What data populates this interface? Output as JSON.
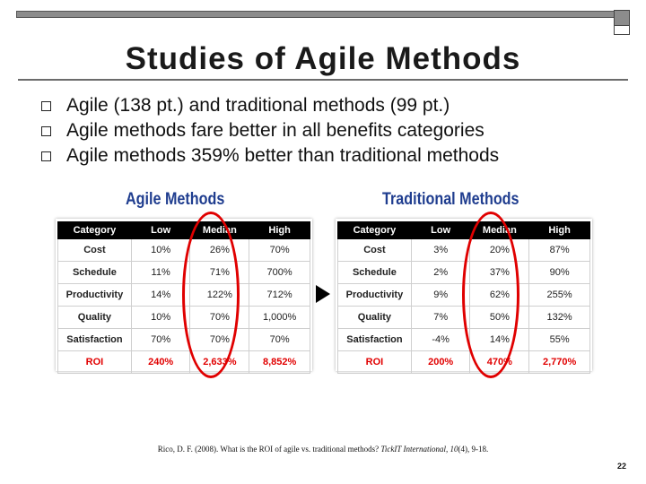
{
  "slide": {
    "title": "Studies of Agile Methods",
    "bullets": [
      "Agile (138 pt.) and traditional methods (99 pt.)",
      "Agile methods fare better in all benefits categories",
      "Agile methods 359% better than traditional methods"
    ],
    "page_number": "22"
  },
  "agile": {
    "heading": "Agile Methods",
    "columns": [
      "Category",
      "Low",
      "Median",
      "High"
    ],
    "rows": [
      [
        "Cost",
        "10%",
        "26%",
        "70%"
      ],
      [
        "Schedule",
        "11%",
        "71%",
        "700%"
      ],
      [
        "Productivity",
        "14%",
        "122%",
        "712%"
      ],
      [
        "Quality",
        "10%",
        "70%",
        "1,000%"
      ],
      [
        "Satisfaction",
        "70%",
        "70%",
        "70%"
      ],
      [
        "ROI",
        "240%",
        "2,633%",
        "8,852%"
      ]
    ]
  },
  "traditional": {
    "heading": "Traditional Methods",
    "columns": [
      "Category",
      "Low",
      "Median",
      "High"
    ],
    "rows": [
      [
        "Cost",
        "3%",
        "20%",
        "87%"
      ],
      [
        "Schedule",
        "2%",
        "37%",
        "90%"
      ],
      [
        "Productivity",
        "9%",
        "62%",
        "255%"
      ],
      [
        "Quality",
        "7%",
        "50%",
        "132%"
      ],
      [
        "Satisfaction",
        "-4%",
        "14%",
        "55%"
      ],
      [
        "ROI",
        "200%",
        "470%",
        "2,770%"
      ]
    ]
  },
  "citation": {
    "prefix": "Rico, D. F. (2008). What is the ROI of agile vs. traditional methods? ",
    "journal": "TickIT International",
    "volume": "10",
    "suffix": "(4), 9-18."
  },
  "colors": {
    "heading_blue": "#1f3d8f",
    "highlight_red": "#e00000",
    "roi_red": "#e10000"
  }
}
